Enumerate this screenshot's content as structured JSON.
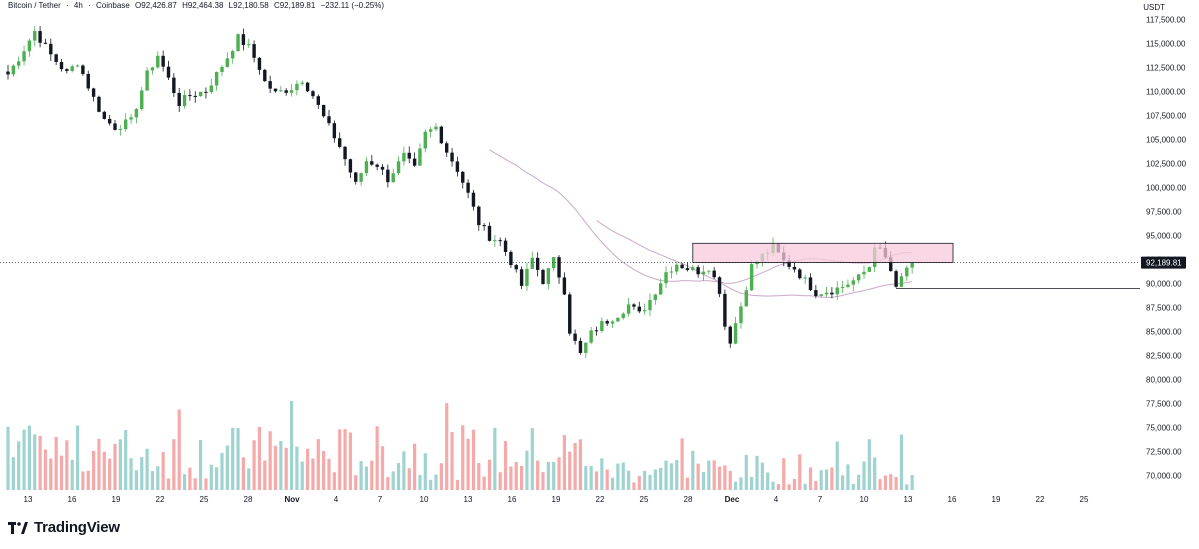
{
  "header": {
    "symbol": "Bitcoin / Tether",
    "interval": "4h",
    "exchange": "Coinbase",
    "open": "O92,426.87",
    "high": "H92,464.38",
    "low": "L92,180.58",
    "close": "C92,189.81",
    "change": "−232.11 (−0.25%)",
    "separator": "·"
  },
  "price_axis": {
    "unit": "USDT",
    "last_price_label": "92,189.81"
  },
  "colors": {
    "up": "#4caf50",
    "down": "#131722",
    "vol_up": "#9fd3d0",
    "vol_down": "#f5a9a9",
    "zone_fill": "#f8c9dc",
    "zone_stroke": "#131722",
    "ma": "#c9a9c9",
    "support_line": "#131722"
  },
  "branding": {
    "name": "TradingView"
  },
  "chart_data": {
    "type": "candlestick",
    "title": "",
    "y_axis": {
      "unit": "USDT",
      "position": "right",
      "ticks": [
        "117,500.00",
        "115,000.00",
        "112,500.00",
        "110,000.00",
        "107,500.00",
        "105,000.00",
        "102,500.00",
        "100,000.00",
        "97,500.00",
        "95,000.00",
        "92,500.00",
        "90,000.00",
        "87,500.00",
        "85,000.00",
        "82,500.00",
        "80,000.00",
        "77,500.00",
        "75,000.00",
        "72,500.00",
        "70,000.00"
      ],
      "ylim": [
        68500,
        118500
      ]
    },
    "x_axis": {
      "ticks": [
        "13",
        "16",
        "19",
        "22",
        "25",
        "28",
        "Nov",
        "4",
        "7",
        "10",
        "13",
        "16",
        "19",
        "22",
        "25",
        "28",
        "Dec",
        "4",
        "7",
        "10",
        "13",
        "16",
        "19",
        "22",
        "25"
      ]
    },
    "last_price": 92189.81,
    "resistance_zone": {
      "from": 92200,
      "to": 94200
    },
    "support_level": 89500,
    "price_path": [
      [
        111800,
        0
      ],
      [
        113500,
        2
      ],
      [
        116300,
        5
      ],
      [
        113800,
        8
      ],
      [
        111900,
        11
      ],
      [
        113100,
        13
      ],
      [
        109300,
        16
      ],
      [
        107100,
        18
      ],
      [
        106300,
        20
      ],
      [
        106900,
        23
      ],
      [
        111800,
        26
      ],
      [
        113800,
        28
      ],
      [
        111300,
        30
      ],
      [
        108800,
        32
      ],
      [
        109600,
        34
      ],
      [
        110100,
        37
      ],
      [
        111800,
        39
      ],
      [
        113600,
        41
      ],
      [
        115600,
        43
      ],
      [
        114600,
        45
      ],
      [
        112500,
        47
      ],
      [
        111000,
        48
      ],
      [
        109800,
        50
      ],
      [
        110400,
        53
      ],
      [
        111300,
        55
      ],
      [
        109600,
        57
      ],
      [
        107300,
        59
      ],
      [
        104300,
        62
      ],
      [
        100300,
        65
      ],
      [
        102800,
        67
      ],
      [
        102400,
        69
      ],
      [
        100900,
        71
      ],
      [
        103300,
        74
      ],
      [
        101900,
        76
      ],
      [
        105600,
        78
      ],
      [
        106300,
        80
      ],
      [
        103800,
        82
      ],
      [
        101900,
        84
      ],
      [
        99300,
        86
      ],
      [
        96300,
        88
      ],
      [
        94900,
        90
      ],
      [
        94400,
        92
      ],
      [
        92300,
        94
      ],
      [
        89800,
        96
      ],
      [
        92600,
        98
      ],
      [
        90300,
        100
      ],
      [
        92400,
        102
      ],
      [
        89300,
        104
      ],
      [
        85100,
        105
      ],
      [
        82600,
        107
      ],
      [
        84800,
        109
      ],
      [
        85800,
        111
      ],
      [
        86800,
        114
      ],
      [
        87800,
        116
      ],
      [
        86800,
        118
      ],
      [
        88300,
        120
      ],
      [
        91200,
        123
      ],
      [
        92100,
        125
      ],
      [
        91600,
        127
      ],
      [
        91300,
        129
      ],
      [
        91800,
        131
      ],
      [
        89300,
        133
      ],
      [
        85600,
        134
      ],
      [
        84100,
        135
      ],
      [
        87700,
        137
      ],
      [
        91800,
        139
      ],
      [
        92900,
        141
      ],
      [
        93800,
        143
      ],
      [
        92300,
        145
      ],
      [
        91600,
        147
      ],
      [
        90300,
        149
      ],
      [
        89100,
        151
      ],
      [
        89300,
        154
      ],
      [
        89700,
        156
      ],
      [
        90300,
        158
      ],
      [
        90600,
        159
      ],
      [
        91800,
        161
      ],
      [
        94100,
        162
      ],
      [
        92600,
        164
      ],
      [
        91300,
        165
      ],
      [
        89300,
        166
      ],
      [
        90600,
        167
      ],
      [
        91700,
        168
      ],
      [
        92190,
        169
      ]
    ],
    "volume_notes": "volume histogram at bottom of pane, no volume scale shown"
  }
}
